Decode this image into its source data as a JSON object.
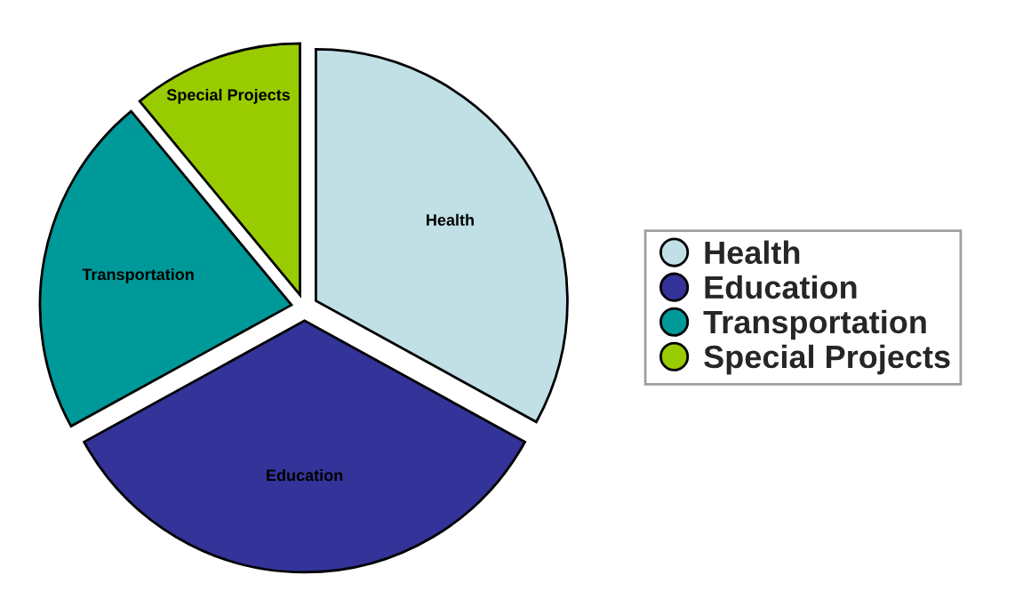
{
  "chart_data": {
    "type": "pie",
    "categories": [
      "Health",
      "Education",
      "Transportation",
      "Special Projects"
    ],
    "values": [
      33,
      34,
      22,
      11
    ],
    "colors": [
      "#c0e0e6",
      "#333399",
      "#009999",
      "#99cc00"
    ],
    "legend": "right"
  }
}
